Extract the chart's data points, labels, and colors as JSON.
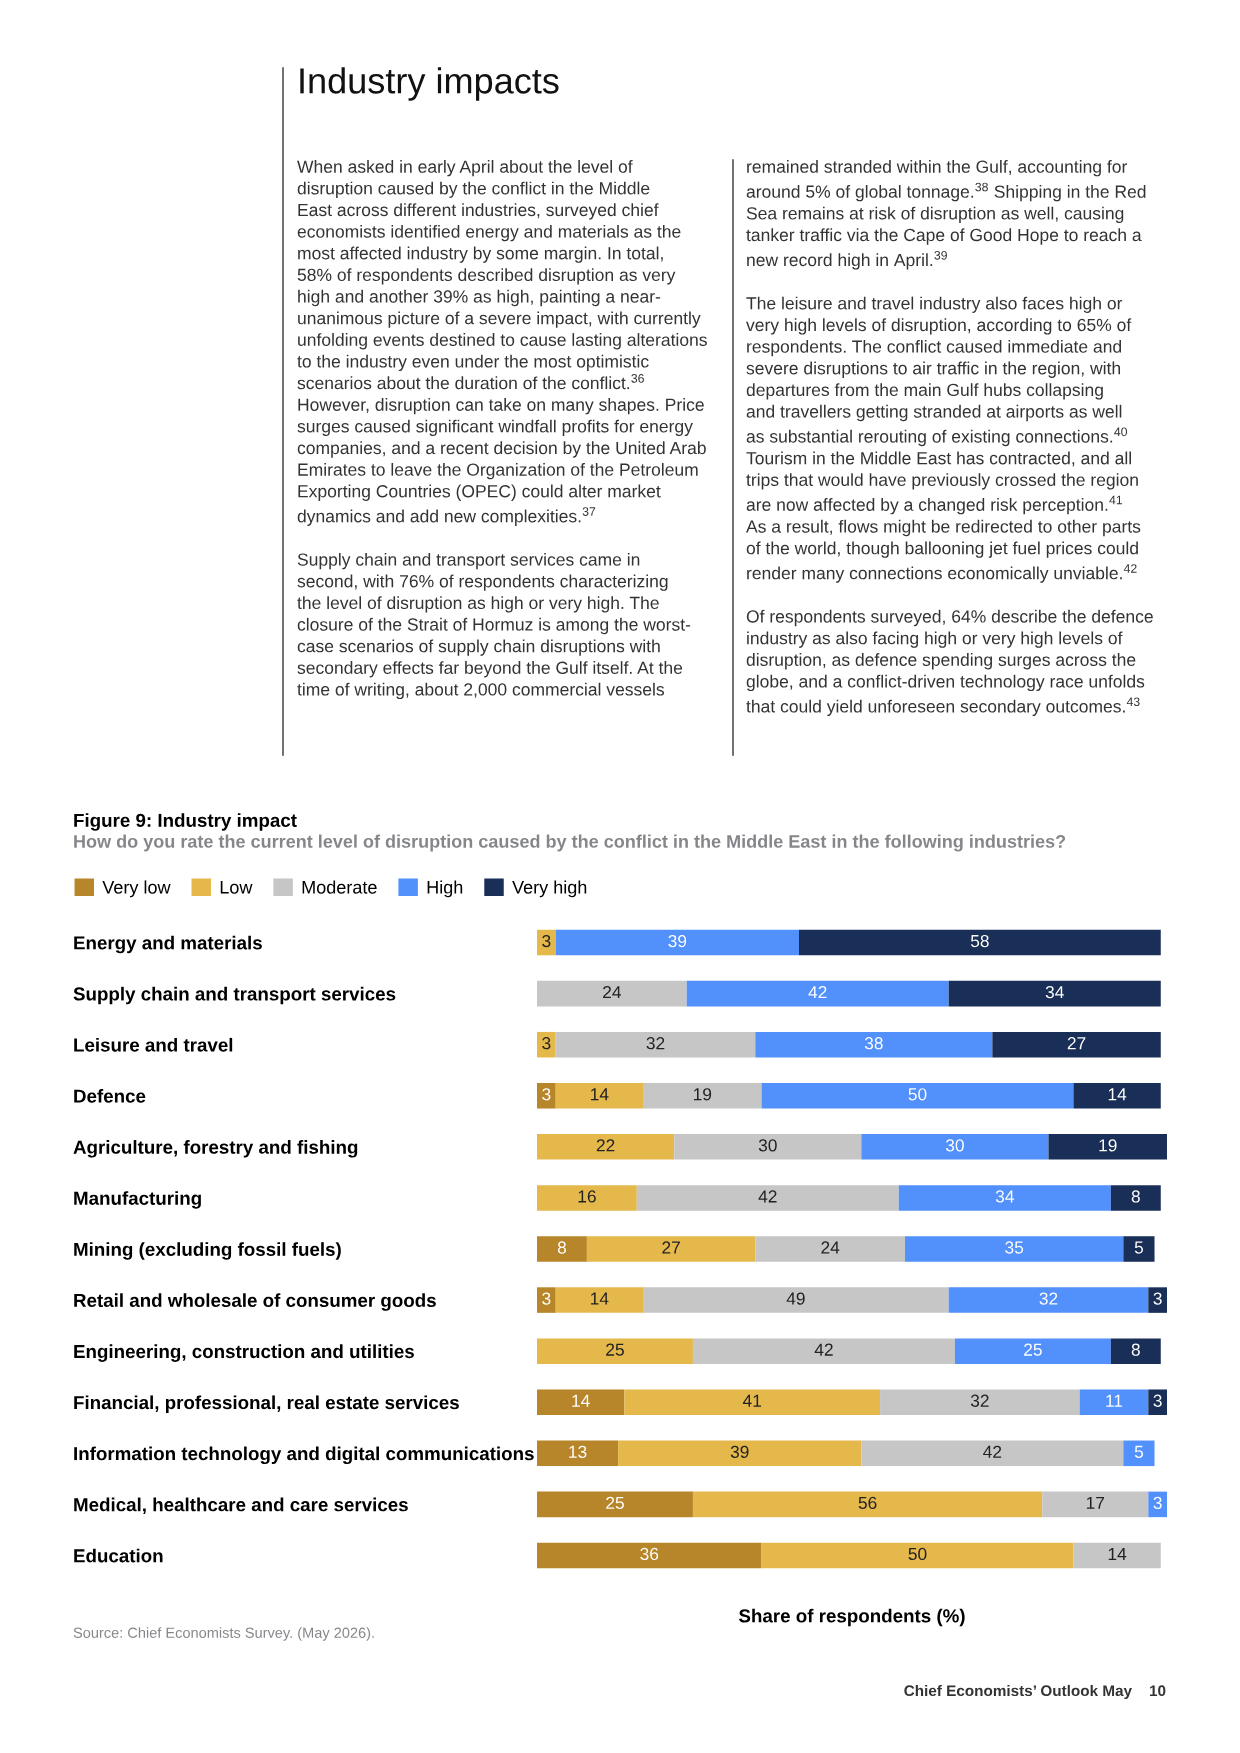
{
  "chart_data": {
    "type": "bar",
    "orientation": "horizontal",
    "stacked": true,
    "title": "Figure 9: Industry impact",
    "subtitle": "How do you rate the current level of disruption caused by the conflict in the Middle East in the following industries?",
    "xlabel": "Share of respondents (%)",
    "categories": [
      "Energy and materials",
      "Supply chain and transport services",
      "Leisure and travel",
      "Defence",
      "Agriculture, forestry and fishing",
      "Manufacturing",
      "Mining (excluding fossil fuels)",
      "Retail and wholesale of consumer goods",
      "Engineering, construction and utilities",
      "Financial, professional, real estate services",
      "Information technology and digital communications",
      "Medical, healthcare and care services",
      "Education"
    ],
    "series": [
      {
        "name": "Very low",
        "color": "#b8862a",
        "values": [
          null,
          null,
          null,
          3,
          null,
          null,
          8,
          3,
          null,
          14,
          13,
          25,
          36
        ]
      },
      {
        "name": "Low",
        "color": "#e5b84b",
        "values": [
          3,
          null,
          3,
          14,
          22,
          16,
          27,
          14,
          25,
          41,
          39,
          56,
          50
        ]
      },
      {
        "name": "Moderate",
        "color": "#c6c6c6",
        "values": [
          null,
          24,
          32,
          19,
          30,
          42,
          24,
          49,
          42,
          32,
          42,
          17,
          14
        ]
      },
      {
        "name": "High",
        "color": "#5290fc",
        "values": [
          39,
          42,
          38,
          50,
          30,
          34,
          35,
          32,
          25,
          11,
          5,
          3,
          null
        ]
      },
      {
        "name": "Very high",
        "color": "#1a2f57",
        "values": [
          58,
          34,
          27,
          14,
          19,
          8,
          5,
          3,
          8,
          3,
          null,
          null,
          null
        ]
      }
    ],
    "data_labels": true,
    "legend": "top left",
    "tick_labels": "y",
    "grid": false,
    "annotations": [
      "Industry impacts",
      "When asked in early April about the level of\ndisruption caused by the conflict in the Middle\nEast across different industries, surveyed chief\neconomists identified energy and materials as the\nmost affected industry by some margin. In total,\n58% of respondents described disruption as very\nhigh and another 39% as high, painting a near-\nunanimous picture of a severe impact, with currently\nunfolding events destined to cause lasting alterations\nto the industry even under the most optimistic\nscenarios about the duration of the conflict.$^{36}$\nHowever, disruption can take on many shapes. Price\nsurges caused significant windfall profits for energy\ncompanies, and a recent decision by the United Arab\nEmirates to leave the Organization of the Petroleum\nExporting Countries (OPEC) could alter market\ndynamics and add new complexities.$^{37}$\n\nSupply chain and transport services came in\nsecond, with 76% of respondents characterizing\nthe level of disruption as high or very high. The\nclosure of the Strait of Hormuz is among the worst-\ncase scenarios of supply chain disruptions with\nsecondary effects far beyond the Gulf itself. At the\ntime of writing, about 2,000 commercial vessels",
      "remained stranded within the Gulf, accounting for\naround 5% of global tonnage.$^{38}$ Shipping in the Red\nSea remains at risk of disruption as well, causing\ntanker traffic via the Cape of Good Hope to reach a\nnew record high in April.$^{39}$\n\nThe leisure and travel industry also faces high or\nvery high levels of disruption, according to 65% of\nrespondents. The conflict caused immediate and\nsevere disruptions to air traffic in the region, with\ndepartures from the main Gulf hubs collapsing\nand travellers getting stranded at airports as well\nas substantial rerouting of existing connections.$^{40}$\nTourism in the Middle East has contracted, and all\ntrips that would have previously crossed the region\nare now affected by a changed risk perception.$^{41}$\nAs a result, flows might be redirected to other parts\nof the world, though ballooning jet fuel prices could\nrender many connections economically unviable.$^{42}$\n\nOf respondents surveyed, 64% describe the defence\nindustry as also facing high or very high levels of\ndisruption, as defence spending surges across the\nglobe, and a conflict-driven technology race unfolds\nthat could yield unforeseen secondary outcomes.$^{43}$",
      "Source: Chief Economists Survey. (May 2026).",
      "Chief Economists’ Outlook May    10"
    ]
  }
}
